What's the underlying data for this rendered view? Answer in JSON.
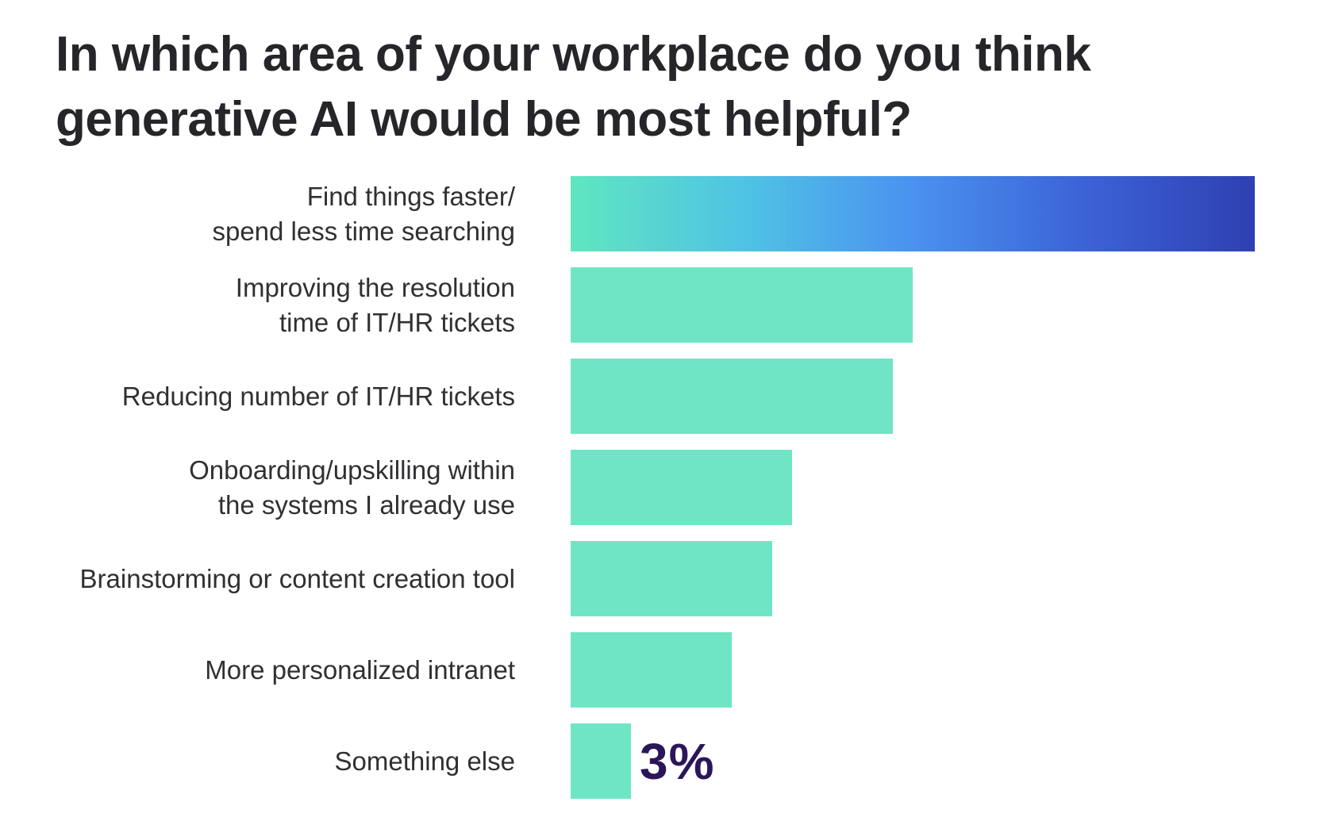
{
  "page": {
    "background": "#ffffff"
  },
  "title": {
    "line1": "In which area of your workplace do you think",
    "line2": "generative AI would be most helpful?",
    "color": "#26262a"
  },
  "chart_data": {
    "type": "bar",
    "orientation": "horizontal",
    "title": "In which area of your workplace do you think generative AI would be most helpful?",
    "unit": "%",
    "xlim": [
      0,
      34
    ],
    "grid": false,
    "legend": false,
    "categories": [
      "Find things faster/spend less time searching",
      "Improving the resolution time of IT/HR tickets",
      "Reducing number of IT/HR tickets",
      "Onboarding/upskilling within the systems I already use",
      "Brainstorming or content creation tool",
      "More personalized intranet",
      "Something else"
    ],
    "values": [
      34,
      17,
      16,
      11,
      10,
      8,
      3
    ],
    "bars": [
      {
        "label_lines": [
          "Find things faster/",
          "spend less time searching"
        ],
        "value": 34,
        "value_label": "",
        "fill": "gradient"
      },
      {
        "label_lines": [
          "Improving the resolution",
          "time of IT/HR tickets"
        ],
        "value": 17,
        "value_label": "",
        "fill": "teal"
      },
      {
        "label_lines": [
          "Reducing number of IT/HR tickets"
        ],
        "value": 16,
        "value_label": "",
        "fill": "teal"
      },
      {
        "label_lines": [
          "Onboarding/upskilling within",
          "the systems I already use"
        ],
        "value": 11,
        "value_label": "",
        "fill": "teal"
      },
      {
        "label_lines": [
          "Brainstorming or content creation tool"
        ],
        "value": 10,
        "value_label": "",
        "fill": "teal"
      },
      {
        "label_lines": [
          "More personalized intranet"
        ],
        "value": 8,
        "value_label": "",
        "fill": "teal"
      },
      {
        "label_lines": [
          "Something else"
        ],
        "value": 3,
        "value_label": "3%",
        "fill": "teal"
      }
    ],
    "colors": {
      "bar_teal": "#6FE5C6",
      "gradient_stops": [
        "#5FE6C0",
        "#4FC4E4",
        "#4A92F0",
        "#3C63D6",
        "#2E40B2"
      ],
      "title_color": "#26262a",
      "category_label_color": "#303034",
      "value_label_color": "#2B165A"
    }
  }
}
